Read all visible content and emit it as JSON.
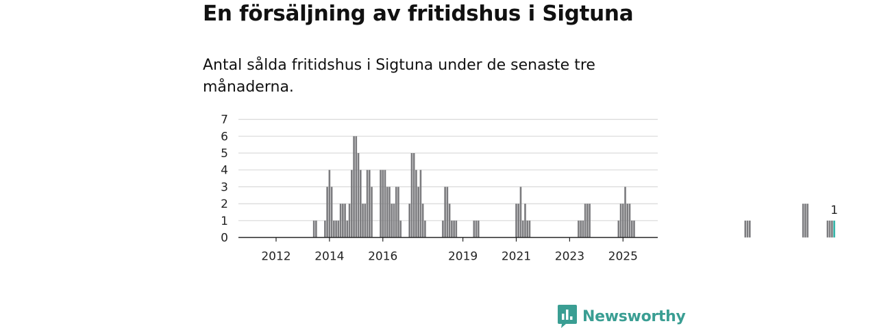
{
  "title": "En försäljning av fritidshus i Sigtuna",
  "subtitle": "Antal sålda fritidshus i Sigtuna under de senaste tre månaderna.",
  "brand": {
    "name": "Newsworthy",
    "color": "#3a9e93",
    "icon": "newsworthy-logo-icon"
  },
  "colors": {
    "bar": "#7b7b7e",
    "highlight": "#2fb3a6",
    "grid": "#d9d9d9",
    "axis": "#222222"
  },
  "chart_data": {
    "type": "bar",
    "title": "En försäljning av fritidshus i Sigtuna",
    "subtitle": "Antal sålda fritidshus i Sigtuna under de senaste tre månaderna.",
    "xlabel": "",
    "ylabel": "",
    "ylim": [
      0,
      7
    ],
    "yticks": [
      "0",
      "1",
      "2",
      "3",
      "4",
      "5",
      "6",
      "7"
    ],
    "xticks": [
      "2012",
      "2014",
      "2016",
      "2019",
      "2021",
      "2023",
      "2025"
    ],
    "x_start": "2011-05",
    "x_end": "2025-08",
    "grid": true,
    "highlight_label": "1",
    "values": [
      0,
      0,
      0,
      0,
      0,
      0,
      0,
      0,
      0,
      0,
      0,
      0,
      0,
      0,
      0,
      0,
      0,
      0,
      0,
      0,
      0,
      0,
      0,
      0,
      0,
      1,
      1,
      0,
      0,
      0,
      1,
      3,
      4,
      3,
      1,
      1,
      1,
      2,
      2,
      2,
      1,
      2,
      4,
      6,
      6,
      5,
      4,
      2,
      2,
      4,
      4,
      3,
      0,
      0,
      0,
      4,
      4,
      4,
      3,
      3,
      2,
      2,
      3,
      3,
      1,
      0,
      0,
      0,
      2,
      5,
      5,
      4,
      3,
      4,
      2,
      1,
      0,
      0,
      0,
      0,
      0,
      0,
      0,
      1,
      3,
      3,
      2,
      1,
      1,
      1,
      0,
      0,
      0,
      0,
      0,
      0,
      0,
      1,
      1,
      1,
      0,
      0,
      0,
      0,
      0,
      0,
      0,
      0,
      0,
      0,
      0,
      0,
      0,
      0,
      0,
      0,
      2,
      2,
      3,
      1,
      2,
      1,
      1,
      0,
      0,
      0,
      0,
      0,
      0,
      0,
      0,
      0,
      0,
      0,
      0,
      0,
      0,
      0,
      0,
      0,
      0,
      0,
      0,
      0,
      1,
      1,
      1,
      2,
      2,
      2,
      0,
      0,
      0,
      0,
      0,
      0,
      0,
      0,
      0,
      0,
      0,
      0,
      1,
      2,
      2,
      3,
      2,
      2,
      1,
      1,
      0,
      0,
      0,
      0,
      0,
      0,
      0,
      0,
      0,
      0,
      0,
      0,
      0,
      0,
      0,
      0,
      0,
      0,
      0,
      0,
      0,
      0,
      0,
      0,
      0,
      0,
      0,
      0,
      0,
      0,
      0,
      0,
      0,
      0,
      0,
      0,
      0,
      0,
      0,
      0,
      0,
      0,
      0,
      0,
      0,
      0,
      0,
      0,
      0,
      1,
      1,
      1,
      0,
      0,
      0,
      0,
      0,
      0,
      0,
      0,
      0,
      0,
      0,
      0,
      0,
      0,
      0,
      0,
      0,
      0,
      0,
      0,
      0,
      0,
      0,
      2,
      2,
      2,
      0,
      0,
      0,
      0,
      0,
      0,
      0,
      0,
      1,
      1,
      1,
      1
    ]
  }
}
